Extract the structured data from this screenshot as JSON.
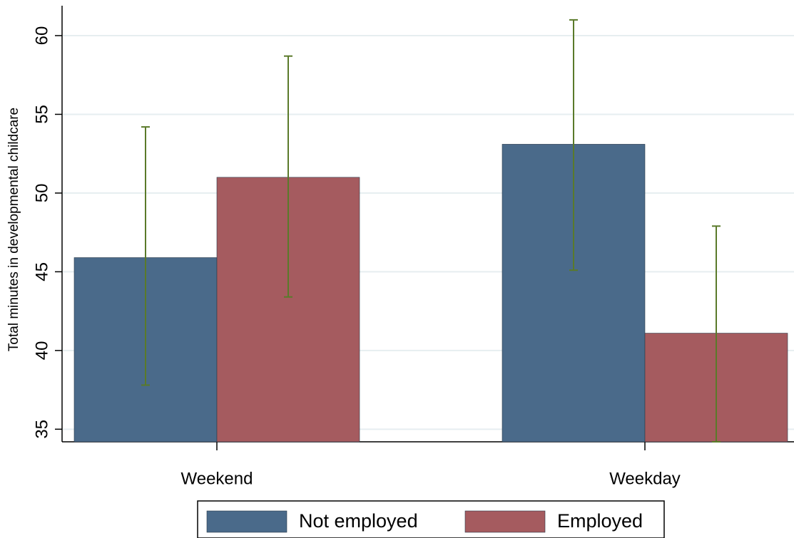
{
  "chart_data": {
    "type": "bar",
    "y_label": "Total minutes in developmental childcare",
    "categories": [
      "Weekend",
      "Weekday"
    ],
    "series": [
      {
        "name": "Not employed",
        "color": "#4a6a8a",
        "values": [
          45.9,
          53.1
        ],
        "ci_low": [
          37.8,
          45.1
        ],
        "ci_high": [
          54.2,
          61.0
        ]
      },
      {
        "name": "Employed",
        "color": "#a55b5f",
        "values": [
          51.0,
          41.1
        ],
        "ci_low": [
          43.4,
          34.2
        ],
        "ci_high": [
          58.7,
          47.9
        ]
      }
    ],
    "error_color": "#5a7a2a",
    "ylim": [
      34.2,
      61.9
    ],
    "yticks": [
      35,
      40,
      45,
      50,
      55,
      60
    ],
    "grid": true,
    "legend": "bottom"
  }
}
